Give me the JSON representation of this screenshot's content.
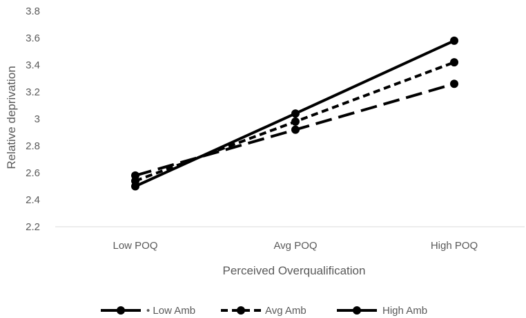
{
  "chart_data": {
    "type": "line",
    "title": "",
    "xlabel": "Perceived Overqualification",
    "ylabel": "Relative deprivation",
    "categories": [
      "Low POQ",
      "Avg POQ",
      "High POQ"
    ],
    "ylim": [
      2.2,
      3.8
    ],
    "yticks": [
      "2.2",
      "2.4",
      "2.6",
      "2.8",
      "3",
      "3.2",
      "3.4",
      "3.6",
      "3.8"
    ],
    "ytick_values": [
      2.2,
      2.4,
      2.6,
      2.8,
      3.0,
      3.2,
      3.4,
      3.6,
      3.8
    ],
    "grid": false,
    "legend_position": "bottom",
    "series": [
      {
        "name": "Low Amb",
        "values": [
          2.58,
          2.92,
          3.26
        ],
        "dash": "long-dash",
        "color": "#000000"
      },
      {
        "name": "Avg Amb",
        "values": [
          2.54,
          2.98,
          3.42
        ],
        "dash": "short-dash",
        "color": "#000000"
      },
      {
        "name": "High Amb",
        "values": [
          2.5,
          3.04,
          3.58
        ],
        "dash": "solid",
        "color": "#000000"
      }
    ],
    "legend_labels": [
      "• Low Amb",
      "Avg Amb",
      "High Amb"
    ]
  }
}
